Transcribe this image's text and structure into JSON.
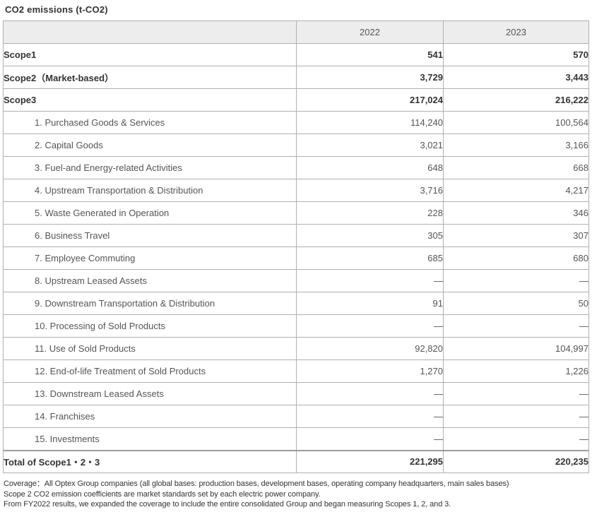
{
  "title": "CO2 emissions (t-CO2)",
  "table": {
    "columns": [
      "",
      "2022",
      "2023"
    ],
    "rows": [
      {
        "label": "Scope1",
        "values": [
          "541",
          "570"
        ],
        "style": "scope"
      },
      {
        "label": "Scope2（Market-based）",
        "values": [
          "3,729",
          "3,443"
        ],
        "style": "scope"
      },
      {
        "label": "Scope3",
        "values": [
          "217,024",
          "216,222"
        ],
        "style": "scope"
      },
      {
        "label": "1. Purchased Goods & Services",
        "values": [
          "114,240",
          "100,564"
        ],
        "style": "sub"
      },
      {
        "label": "2. Capital Goods",
        "values": [
          "3,021",
          "3,166"
        ],
        "style": "sub"
      },
      {
        "label": "3. Fuel-and Energy-related Activities",
        "values": [
          "648",
          "668"
        ],
        "style": "sub"
      },
      {
        "label": "4. Upstream Transportation & Distribution",
        "values": [
          "3,716",
          "4,217"
        ],
        "style": "sub"
      },
      {
        "label": "5. Waste Generated in Operation",
        "values": [
          "228",
          "346"
        ],
        "style": "sub"
      },
      {
        "label": "6. Business Travel",
        "values": [
          "305",
          "307"
        ],
        "style": "sub"
      },
      {
        "label": "7. Employee Commuting",
        "values": [
          "685",
          "680"
        ],
        "style": "sub"
      },
      {
        "label": "8. Upstream Leased Assets",
        "values": [
          "—",
          "—"
        ],
        "style": "sub"
      },
      {
        "label": "9. Downstream Transportation & Distribution",
        "values": [
          "91",
          "50"
        ],
        "style": "sub"
      },
      {
        "label": "10. Processing of Sold Products",
        "values": [
          "—",
          "—"
        ],
        "style": "sub"
      },
      {
        "label": "11. Use of Sold Products",
        "values": [
          "92,820",
          "104,997"
        ],
        "style": "sub"
      },
      {
        "label": "12. End-of-life Treatment of Sold Products",
        "values": [
          "1,270",
          "1,226"
        ],
        "style": "sub"
      },
      {
        "label": "13. Downstream Leased Assets",
        "values": [
          "—",
          "—"
        ],
        "style": "sub"
      },
      {
        "label": "14. Franchises",
        "values": [
          "—",
          "—"
        ],
        "style": "sub"
      },
      {
        "label": "15. Investments",
        "values": [
          "—",
          "—"
        ],
        "style": "sub"
      },
      {
        "label": "Total of Scope1・2・3",
        "values": [
          "221,295",
          "220,235"
        ],
        "style": "total"
      }
    ]
  },
  "footnotes": [
    "Coverage：All Optex Group companies (all global bases: production bases, development bases, operating company headquarters, main sales bases)",
    "Scope 2 CO2 emission coefficients are market standards set by each electric power company.",
    "From FY2022 results, we expanded the coverage to include the entire consolidated Group and began measuring Scopes 1, 2, and 3."
  ],
  "colors": {
    "header_bg": "#ededed",
    "border": "#b0b0b0",
    "text_strong": "#333333",
    "text_muted": "#555555"
  }
}
